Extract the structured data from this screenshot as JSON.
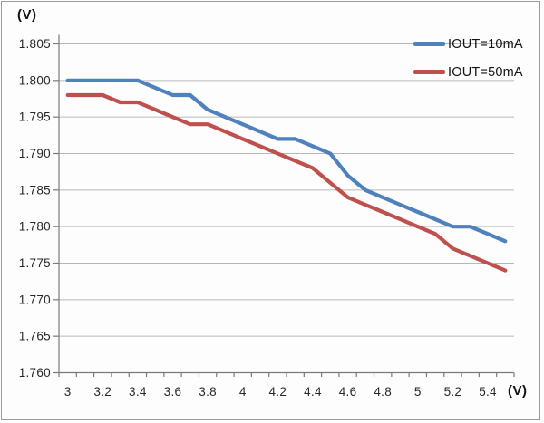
{
  "figure": {
    "y_axis_unit_label": "(V)",
    "x_axis_unit_label": "(V)"
  },
  "style": {
    "background_color": "#fdfdfd",
    "border_color": "#9c9c9c",
    "gridline_color": "#b8b8b8",
    "axis_color": "#7a7a7a",
    "tick_label_color": "#262626",
    "series_blue": "#4F81BD",
    "series_red": "#C0504D"
  },
  "chart_data": {
    "type": "line",
    "title": "",
    "xlabel": "(V)",
    "ylabel": "(V)",
    "grid": true,
    "legend_position": "top-right",
    "xlim": [
      3.0,
      5.5
    ],
    "ylim": [
      1.76,
      1.805
    ],
    "x": [
      3.0,
      3.1,
      3.2,
      3.3,
      3.4,
      3.5,
      3.6,
      3.7,
      3.8,
      3.9,
      4.0,
      4.1,
      4.2,
      4.3,
      4.4,
      4.5,
      4.6,
      4.7,
      4.8,
      4.9,
      5.0,
      5.1,
      5.2,
      5.3,
      5.4,
      5.5
    ],
    "x_tick_labels": [
      "3",
      "3.2",
      "3.4",
      "3.6",
      "3.8",
      "4",
      "4.2",
      "4.4",
      "4.6",
      "4.8",
      "5",
      "5.2",
      "5.4"
    ],
    "y_ticks": [
      1.805,
      1.8,
      1.795,
      1.79,
      1.785,
      1.78,
      1.775,
      1.77,
      1.765,
      1.76
    ],
    "series": [
      {
        "name": "IOUT=10mA",
        "color": "#4F81BD",
        "values": [
          1.8,
          1.8,
          1.8,
          1.8,
          1.8,
          1.799,
          1.798,
          1.798,
          1.796,
          1.795,
          1.794,
          1.793,
          1.792,
          1.792,
          1.791,
          1.79,
          1.787,
          1.785,
          1.784,
          1.783,
          1.782,
          1.781,
          1.78,
          1.78,
          1.779,
          1.778
        ]
      },
      {
        "name": "IOUT=50mA",
        "color": "#C0504D",
        "values": [
          1.798,
          1.798,
          1.798,
          1.797,
          1.797,
          1.796,
          1.795,
          1.794,
          1.794,
          1.793,
          1.792,
          1.791,
          1.79,
          1.789,
          1.788,
          1.786,
          1.784,
          1.783,
          1.782,
          1.781,
          1.78,
          1.779,
          1.777,
          1.776,
          1.775,
          1.774
        ]
      }
    ]
  }
}
